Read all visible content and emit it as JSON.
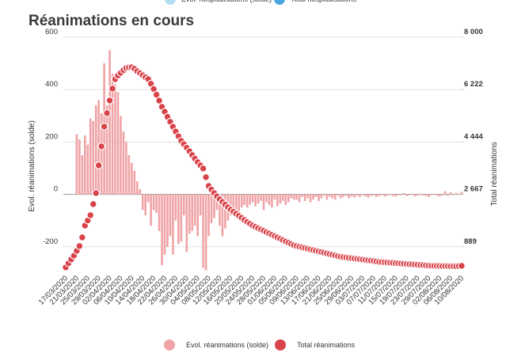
{
  "previous_chart_legend": [
    {
      "name": "Evol. hospitalisations (solde)",
      "color": "#b3def5"
    },
    {
      "name": "Total hospitalisations",
      "color": "#4aa6de"
    }
  ],
  "chart_data": {
    "type": "bar",
    "title": "Réanimations en cours",
    "y_label": "Evol. réanimations (solde)",
    "y2_label": "Total réanimations",
    "ylim": [
      -300,
      600
    ],
    "yticks": [
      -200,
      0,
      200,
      400,
      600
    ],
    "y2lim": [
      0,
      8000
    ],
    "y2ticks": [
      889,
      {
        "value": 2667,
        "label": "2 667"
      },
      {
        "value": 4444,
        "label": "4 444"
      },
      {
        "value": 6222,
        "label": "6 222"
      },
      {
        "value": 8000,
        "label": "8 000"
      }
    ],
    "grid": true,
    "legend": "bottom",
    "categories": [
      "17/03/2020",
      null,
      null,
      null,
      "21/03/2020",
      null,
      null,
      null,
      "25/03/2020",
      null,
      null,
      null,
      "29/03/2020",
      null,
      null,
      null,
      "02/04/2020",
      null,
      null,
      null,
      "06/04/2020",
      null,
      null,
      null,
      "10/04/2020",
      null,
      null,
      null,
      "14/04/2020",
      null,
      null,
      null,
      "18/04/2020",
      null,
      null,
      null,
      "22/04/2020",
      null,
      null,
      null,
      "26/04/2020",
      null,
      null,
      null,
      "30/04/2020",
      null,
      null,
      null,
      "04/05/2020",
      null,
      null,
      null,
      "08/05/2020",
      null,
      null,
      null,
      "12/05/2020",
      null,
      null,
      null,
      "16/05/2020",
      null,
      null,
      null,
      "20/05/2020",
      null,
      null,
      null,
      "24/05/2020",
      null,
      null,
      null,
      "28/05/2020",
      null,
      null,
      null,
      "01/06/2020",
      null,
      null,
      null,
      "05/06/2020",
      null,
      null,
      null,
      "09/06/2020",
      null,
      null,
      null,
      "13/06/2020",
      null,
      null,
      null,
      "17/06/2020",
      null,
      null,
      null,
      "21/06/2020",
      null,
      null,
      null,
      "25/06/2020",
      null,
      null,
      null,
      "29/06/2020",
      null,
      null,
      null,
      "03/07/2020",
      null,
      null,
      null,
      "07/07/2020",
      null,
      null,
      null,
      "11/07/2020",
      null,
      null,
      null,
      "15/07/2020",
      null,
      null,
      null,
      "19/07/2020",
      null,
      null,
      null,
      "23/07/2020",
      null,
      null,
      null,
      "29/07/2020",
      null,
      null,
      null,
      "02/08/2020",
      null,
      null,
      null,
      "06/08/2020",
      null,
      null,
      null,
      "10/08/2020"
    ],
    "series": [
      {
        "name": "Evol. réanimations (solde)",
        "type": "bar",
        "color": "#f0a3a6",
        "values": [
          null,
          null,
          null,
          null,
          230,
          210,
          150,
          225,
          190,
          290,
          280,
          340,
          360,
          310,
          500,
          340,
          550,
          460,
          420,
          390,
          300,
          240,
          200,
          150,
          120,
          90,
          50,
          20,
          -60,
          -80,
          -30,
          -120,
          -60,
          -70,
          -140,
          -270,
          -230,
          -200,
          -160,
          -230,
          -100,
          -190,
          -180,
          -80,
          -220,
          -150,
          -140,
          -120,
          -160,
          -80,
          -280,
          -290,
          -160,
          -110,
          -90,
          -60,
          -120,
          -160,
          -130,
          -100,
          -80,
          -60,
          -90,
          -70,
          -50,
          -40,
          -50,
          -40,
          -30,
          -45,
          -35,
          -25,
          -60,
          -30,
          -40,
          -50,
          -20,
          -45,
          -35,
          -25,
          -40,
          -30,
          -15,
          -20,
          -20,
          -30,
          -10,
          -25,
          -15,
          -30,
          -20,
          -10,
          -25,
          -15,
          -5,
          -20,
          -10,
          -15,
          -20,
          -5,
          -15,
          -10,
          -5,
          -15,
          -8,
          -12,
          -5,
          -10,
          -3,
          -8,
          -12,
          -6,
          -4,
          -10,
          -7,
          -3,
          -8,
          -5,
          -2,
          -6,
          -9,
          -4,
          -3,
          5,
          -6,
          -4,
          -2,
          -8,
          -5,
          3,
          -4,
          -6,
          -10,
          -3,
          -2,
          -5,
          -8,
          -4,
          12,
          -6,
          8,
          -3,
          6,
          -2,
          10
        ]
      },
      {
        "name": "Total réanimations",
        "type": "line",
        "axis": "y2",
        "color": "#d9434a",
        "values": [
          190,
          330,
          460,
          590,
          750,
          913,
          1208,
          1611,
          1780,
          1960,
          2336,
          2711,
          3651,
          4295,
          4966,
          5423,
          5852,
          6255,
          6577,
          6700,
          6792,
          6880,
          6953,
          6975,
          6980,
          6930,
          6846,
          6780,
          6711,
          6640,
          6577,
          6420,
          6240,
          6050,
          5850,
          5638,
          5470,
          5300,
          5130,
          4960,
          4800,
          4640,
          4483,
          4370,
          4250,
          4130,
          4000,
          3880,
          3760,
          3650,
          3544,
          3250,
          2953,
          2830,
          2710,
          2600,
          2500,
          2410,
          2320,
          2230,
          2148,
          2080,
          2010,
          1940,
          1870,
          1800,
          1730,
          1670,
          1611,
          1565,
          1520,
          1475,
          1430,
          1385,
          1340,
          1295,
          1250,
          1205,
          1160,
          1115,
          1070,
          1025,
          980,
          940,
          915,
          892,
          869,
          846,
          823,
          800,
          777,
          754,
          731,
          708,
          685,
          662,
          639,
          616,
          593,
          570,
          550,
          537,
          525,
          513,
          501,
          489,
          477,
          465,
          453,
          441,
          429,
          417,
          405,
          390,
          376,
          370,
          363,
          356,
          349,
          342,
          335,
          328,
          321,
          314,
          307,
          300,
          293,
          286,
          279,
          272,
          265,
          258,
          250,
          242,
          242,
          240,
          238,
          236,
          234,
          232,
          230,
          230,
          230,
          236,
          242
        ]
      }
    ]
  }
}
